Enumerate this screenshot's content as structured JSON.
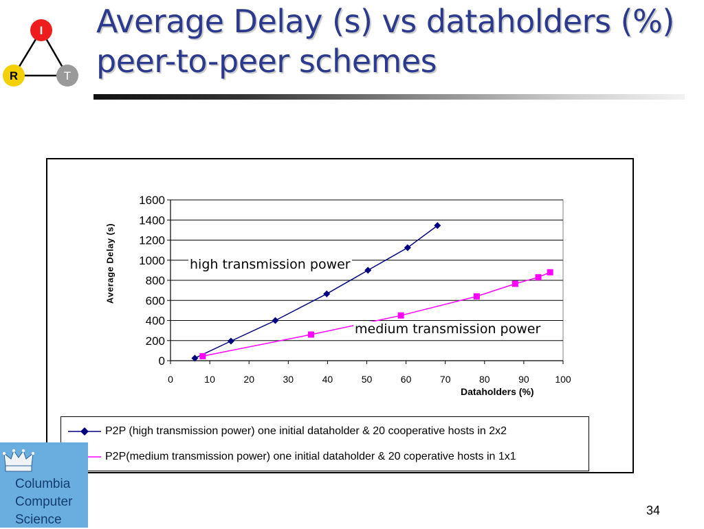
{
  "slide": {
    "title_line1": "Average Delay (s) vs dataholders (%)",
    "title_line2": "peer-to-peer schemes",
    "page_number": "34"
  },
  "logo": {
    "top_label": "I",
    "left_label": "R",
    "right_label": "T",
    "colors": {
      "top": "#ee1c1c",
      "left": "#f5d000",
      "right": "#9a9a9a"
    }
  },
  "badge": {
    "line1": "Columbia",
    "line2": "Computer",
    "line3": "Science",
    "icon": "crown-icon",
    "color": "#6aaee0"
  },
  "chart_data": {
    "type": "scatter",
    "xlabel": "Dataholders (%)",
    "ylabel": "Average Delay (s)",
    "xlim": [
      0,
      100
    ],
    "ylim": [
      0,
      1600
    ],
    "xticks": [
      0,
      10,
      20,
      30,
      40,
      50,
      60,
      70,
      80,
      90,
      100
    ],
    "yticks": [
      0,
      200,
      400,
      600,
      800,
      1000,
      1200,
      1400,
      1600
    ],
    "grid": "horizontal",
    "legend_position": "bottom",
    "series": [
      {
        "name": "P2P (high transmission power)  one initial dataholder & 20 cooperative hosts in 2x2",
        "color": "#000080",
        "marker": "diamond",
        "points": [
          [
            6.2,
            25
          ],
          [
            15.4,
            195
          ],
          [
            26.7,
            400
          ],
          [
            39.8,
            665
          ],
          [
            50.3,
            900
          ],
          [
            60.4,
            1125
          ],
          [
            68,
            1345
          ]
        ]
      },
      {
        "name": "P2P(medium transmission power) one initial dataholder & 20 coperative hosts in 1x1",
        "color": "#ff00ff",
        "marker": "square",
        "points": [
          [
            8.2,
            45
          ],
          [
            35.8,
            260
          ],
          [
            58.7,
            450
          ],
          [
            78,
            640
          ],
          [
            87.8,
            765
          ],
          [
            93.7,
            830
          ],
          [
            96.7,
            880
          ]
        ]
      }
    ],
    "annotations": [
      {
        "text": "high transmission power"
      },
      {
        "text": "medium transmission power"
      }
    ]
  }
}
